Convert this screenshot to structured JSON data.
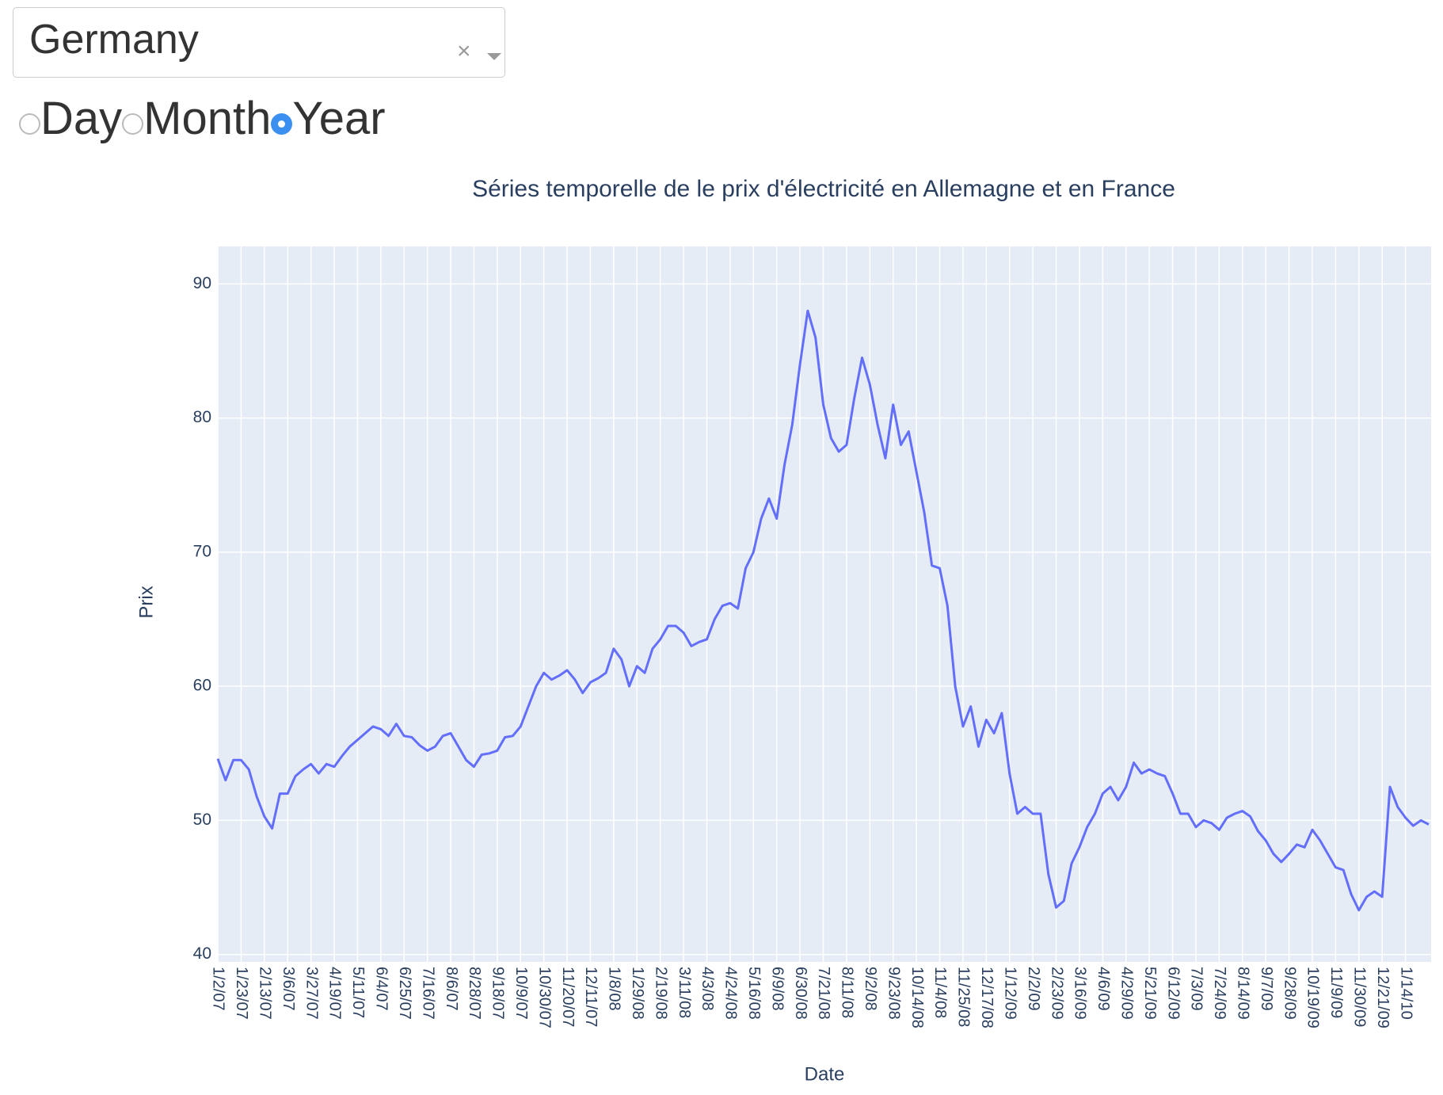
{
  "dropdown": {
    "value": "Germany"
  },
  "radio": {
    "options": [
      "Day",
      "Month",
      "Year"
    ],
    "selected": 2
  },
  "chart_data": {
    "type": "line",
    "title": "Séries temporelle de le prix d'électricité en Allemagne et en France",
    "x_label": "Date",
    "y_label": "Prix",
    "categories": [
      "1/2/07",
      null,
      null,
      "1/23/07",
      null,
      null,
      "2/13/07",
      null,
      null,
      "3/6/07",
      null,
      null,
      "3/27/07",
      null,
      null,
      "4/19/07",
      null,
      null,
      "5/11/07",
      null,
      null,
      "6/4/07",
      null,
      null,
      "6/25/07",
      null,
      null,
      "7/16/07",
      null,
      null,
      "8/6/07",
      null,
      null,
      "8/28/07",
      null,
      null,
      "9/18/07",
      null,
      null,
      "10/9/07",
      null,
      null,
      "10/30/07",
      null,
      null,
      "11/20/07",
      null,
      null,
      "12/11/07",
      null,
      null,
      "1/8/08",
      null,
      null,
      "1/29/08",
      null,
      null,
      "2/19/08",
      null,
      null,
      "3/11/08",
      null,
      null,
      "4/3/08",
      null,
      null,
      "4/24/08",
      null,
      null,
      "5/16/08",
      null,
      null,
      "6/9/08",
      null,
      null,
      "6/30/08",
      null,
      null,
      "7/21/08",
      null,
      null,
      "8/11/08",
      null,
      null,
      "9/2/08",
      null,
      null,
      "9/23/08",
      null,
      null,
      "10/14/08",
      null,
      null,
      "11/4/08",
      null,
      null,
      "11/25/08",
      null,
      null,
      "12/17/08",
      null,
      null,
      "1/12/09",
      null,
      null,
      "2/2/09",
      null,
      null,
      "2/23/09",
      null,
      null,
      "3/16/09",
      null,
      null,
      "4/6/09",
      null,
      null,
      "4/29/09",
      null,
      null,
      "5/21/09",
      null,
      null,
      "6/12/09",
      null,
      null,
      "7/3/09",
      null,
      null,
      "7/24/09",
      null,
      null,
      "8/14/09",
      null,
      null,
      "9/7/09",
      null,
      null,
      "9/28/09",
      null,
      null,
      "10/19/09",
      null,
      null,
      "11/9/09",
      null,
      null,
      "11/30/09",
      null,
      null,
      "12/21/09",
      null,
      null,
      "1/14/10",
      null,
      null,
      null
    ],
    "series": [
      {
        "color": "#636efa",
        "values": [
          54.6,
          53.0,
          54.5,
          54.5,
          53.8,
          51.8,
          50.3,
          49.4,
          52.0,
          52.0,
          53.3,
          53.8,
          54.2,
          53.5,
          54.2,
          54.0,
          54.8,
          55.5,
          56.0,
          56.5,
          57.0,
          56.8,
          56.3,
          57.2,
          56.3,
          56.2,
          55.6,
          55.2,
          55.5,
          56.3,
          56.5,
          55.5,
          54.5,
          54.0,
          54.9,
          55.0,
          55.2,
          56.2,
          56.3,
          57.0,
          58.5,
          60.0,
          61.0,
          60.5,
          60.8,
          61.2,
          60.5,
          59.5,
          60.3,
          60.6,
          61.0,
          62.8,
          62.0,
          60.0,
          61.5,
          61.0,
          62.8,
          63.5,
          64.5,
          64.5,
          64.0,
          63.0,
          63.3,
          63.5,
          65.0,
          66.0,
          66.2,
          65.8,
          68.8,
          70.0,
          72.5,
          74.0,
          72.5,
          76.5,
          79.5,
          84.0,
          88.0,
          86.0,
          81.0,
          78.5,
          77.5,
          78.0,
          81.5,
          84.5,
          82.5,
          79.5,
          77.0,
          81.0,
          78.0,
          79.0,
          76.0,
          73.0,
          69.0,
          68.8,
          66.0,
          60.0,
          57.0,
          58.5,
          55.5,
          57.5,
          56.5,
          58.0,
          53.5,
          50.5,
          51.0,
          50.5,
          50.5,
          46.0,
          43.5,
          44.0,
          46.8,
          48.0,
          49.5,
          50.5,
          52.0,
          52.5,
          51.5,
          52.5,
          54.3,
          53.5,
          53.8,
          53.5,
          53.3,
          52.0,
          50.5,
          50.5,
          49.5,
          50.0,
          49.8,
          49.3,
          50.2,
          50.5,
          50.7,
          50.3,
          49.2,
          48.5,
          47.5,
          46.9,
          47.5,
          48.2,
          48.0,
          49.3,
          48.5,
          47.5,
          46.5,
          46.3,
          44.5,
          43.3,
          44.3,
          44.7,
          44.3,
          52.5,
          51.0,
          50.2,
          49.6,
          50.0,
          49.7
        ]
      }
    ],
    "ylim": [
      39.45,
      92.8
    ],
    "yticks": [
      40,
      50,
      60,
      70,
      80,
      90
    ],
    "grid": true
  }
}
